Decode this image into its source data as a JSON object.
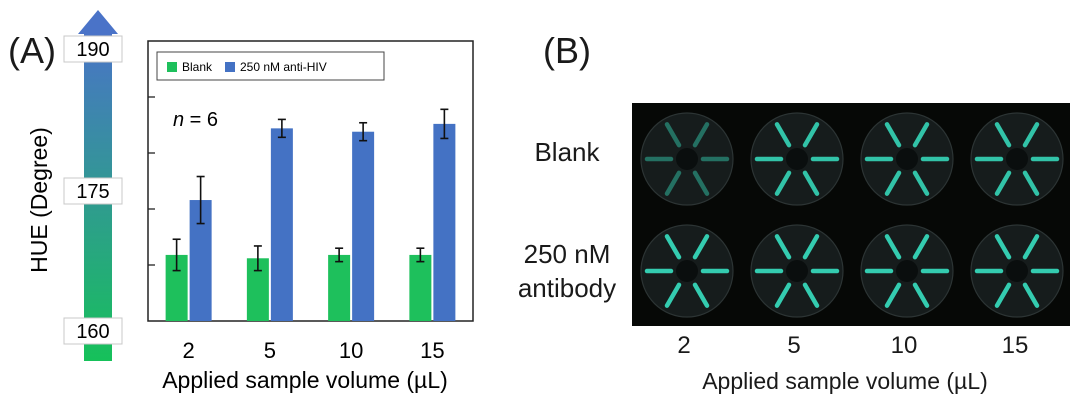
{
  "panels": {
    "a_label": "(A)",
    "b_label": "(B)"
  },
  "hue_scale": {
    "label": "HUE (Degree)",
    "ticks": [
      "190",
      "175",
      "160"
    ],
    "color_top": "#4a73c8",
    "color_bottom": "#16c15a"
  },
  "chart_data": {
    "type": "bar",
    "categories": [
      "2",
      "5",
      "10",
      "15"
    ],
    "series": [
      {
        "name": "Blank",
        "color": "#1ec05c",
        "values": [
          170.9,
          170.6,
          170.9,
          170.9
        ],
        "errors": [
          1.4,
          1.1,
          0.6,
          0.6
        ]
      },
      {
        "name": "250 nM anti-HIV",
        "color": "#4472c4",
        "values": [
          175.8,
          182.2,
          181.9,
          182.6
        ],
        "errors": [
          2.1,
          0.8,
          0.8,
          1.3
        ]
      }
    ],
    "ylim": [
      165,
      190
    ],
    "y_gridline_values": [
      170,
      175,
      180,
      185
    ],
    "xlabel": "Applied sample volume (µL)",
    "ylabel": "HUE (Degree)",
    "annotation": {
      "italic": "n",
      "rest": " = 6"
    },
    "legend_position": "top"
  },
  "photo": {
    "row_labels": [
      "Blank",
      "250 nM",
      "antibody"
    ],
    "columns": [
      "2",
      "5",
      "10",
      "15"
    ],
    "xlabel": "Applied sample volume (µL)",
    "signal_color": "#36d6b8"
  }
}
